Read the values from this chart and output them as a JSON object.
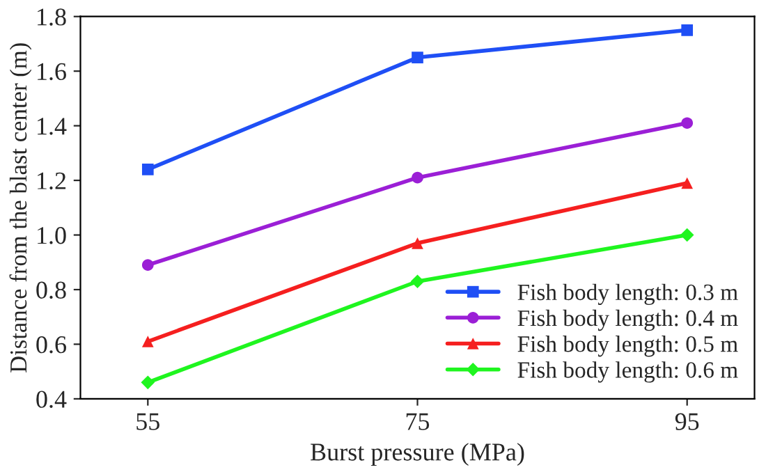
{
  "chart_data": {
    "type": "line",
    "xlabel": "Burst pressure (MPa)",
    "ylabel": "Distance from the blast center (m)",
    "x": [
      55,
      75,
      95
    ],
    "xlim": [
      50,
      100
    ],
    "xticks": [
      55,
      75,
      95
    ],
    "ylim": [
      0.4,
      1.8
    ],
    "yticks": [
      {
        "value": 0.4,
        "label": "0.4"
      },
      {
        "value": 0.6,
        "label": "0.6"
      },
      {
        "value": 0.8,
        "label": "0.8"
      },
      {
        "value": 1.0,
        "label": "1.0"
      },
      {
        "value": 1.2,
        "label": "1.2"
      },
      {
        "value": 1.4,
        "label": "1.4"
      },
      {
        "value": 1.6,
        "label": "1.6"
      },
      {
        "value": 1.8,
        "label": "1.8"
      }
    ],
    "grid": false,
    "legend": "bottom right",
    "line_style": "solid",
    "series": [
      {
        "name": "Fish body length: 0.3 m",
        "color": "#1f4ff5",
        "marker": "square",
        "values": [
          1.24,
          1.65,
          1.75
        ]
      },
      {
        "name": "Fish body length: 0.4 m",
        "color": "#9b1fd6",
        "marker": "circle",
        "values": [
          0.89,
          1.21,
          1.41
        ]
      },
      {
        "name": "Fish body length: 0.5 m",
        "color": "#f51f1f",
        "marker": "triangle",
        "values": [
          0.61,
          0.97,
          1.19
        ]
      },
      {
        "name": "Fish body length: 0.6 m",
        "color": "#1ff51f",
        "marker": "diamond",
        "values": [
          0.46,
          0.83,
          1.0
        ]
      }
    ]
  }
}
